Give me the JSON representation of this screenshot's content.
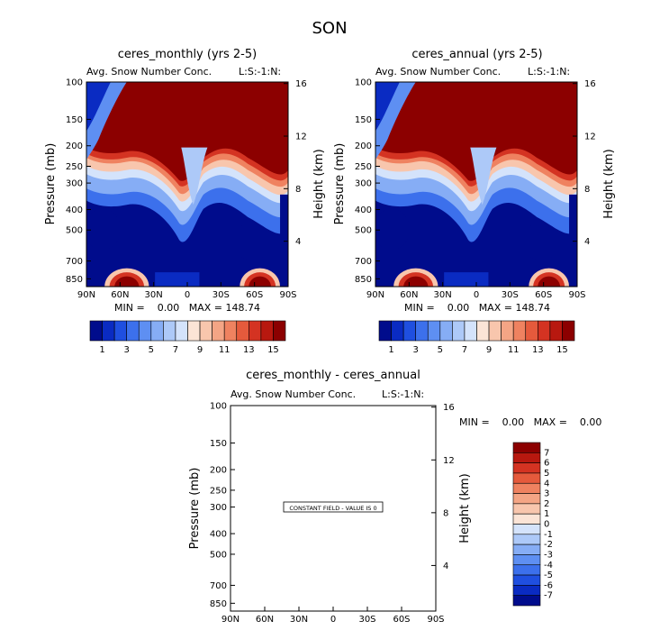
{
  "page_title": "SON",
  "chart_data": [
    {
      "type": "heatmap",
      "title": "ceres_monthly (yrs 2-5)",
      "subtitle": "Avg. Snow Number Conc.",
      "units_label": "L:S:-1:N:",
      "xlabel": "",
      "ylabel": "Pressure (mb)",
      "right_ylabel": "Height (km)",
      "x_ticks": [
        "90N",
        "60N",
        "30N",
        "0",
        "30S",
        "60S",
        "90S"
      ],
      "x_values": [
        90,
        60,
        30,
        0,
        -30,
        -60,
        -90
      ],
      "xlim": [
        90,
        -90
      ],
      "y_ticks": [
        "100",
        "150",
        "200",
        "250",
        "300",
        "400",
        "500",
        "700",
        "850"
      ],
      "y_values": [
        100,
        150,
        200,
        250,
        300,
        400,
        500,
        700,
        850
      ],
      "ylim": [
        100,
        925
      ],
      "right_ticks": [
        "16",
        "12",
        "8",
        "4"
      ],
      "right_values": [
        16,
        12,
        8,
        4
      ],
      "stats": "MIN =    0.00   MAX = 148.74",
      "colorbar": {
        "labels": [
          "1",
          "3",
          "5",
          "7",
          "9",
          "11",
          "13",
          "15"
        ],
        "levels": [
          1,
          3,
          5,
          7,
          9,
          11,
          13,
          15
        ],
        "colors": [
          "#000c8c",
          "#0a2bc2",
          "#1f4fe0",
          "#3c70ec",
          "#5e8ff2",
          "#86adf5",
          "#adc9f8",
          "#d4e3fb",
          "#fbe4d6",
          "#f8c6ad",
          "#f4a585",
          "#ef8260",
          "#e55a3c",
          "#d43322",
          "#b8180f",
          "#8c0000"
        ]
      }
    },
    {
      "type": "heatmap",
      "title": "ceres_annual (yrs 2-5)",
      "subtitle": "Avg. Snow Number Conc.",
      "units_label": "L:S:-1:N:",
      "xlabel": "",
      "ylabel": "Pressure (mb)",
      "right_ylabel": "Height (km)",
      "x_ticks": [
        "90N",
        "60N",
        "30N",
        "0",
        "30S",
        "60S",
        "90S"
      ],
      "x_values": [
        90,
        60,
        30,
        0,
        -30,
        -60,
        -90
      ],
      "xlim": [
        90,
        -90
      ],
      "y_ticks": [
        "100",
        "150",
        "200",
        "250",
        "300",
        "400",
        "500",
        "700",
        "850"
      ],
      "y_values": [
        100,
        150,
        200,
        250,
        300,
        400,
        500,
        700,
        850
      ],
      "ylim": [
        100,
        925
      ],
      "right_ticks": [
        "16",
        "12",
        "8",
        "4"
      ],
      "right_values": [
        16,
        12,
        8,
        4
      ],
      "stats": "MIN =    0.00   MAX = 148.74",
      "colorbar": {
        "labels": [
          "1",
          "3",
          "5",
          "7",
          "9",
          "11",
          "13",
          "15"
        ],
        "levels": [
          1,
          3,
          5,
          7,
          9,
          11,
          13,
          15
        ],
        "colors": [
          "#000c8c",
          "#0a2bc2",
          "#1f4fe0",
          "#3c70ec",
          "#5e8ff2",
          "#86adf5",
          "#adc9f8",
          "#d4e3fb",
          "#fbe4d6",
          "#f8c6ad",
          "#f4a585",
          "#ef8260",
          "#e55a3c",
          "#d43322",
          "#b8180f",
          "#8c0000"
        ]
      }
    },
    {
      "type": "heatmap",
      "title": "ceres_monthly - ceres_annual",
      "subtitle": "Avg. Snow Number Conc.",
      "units_label": "L:S:-1:N:",
      "xlabel": "",
      "ylabel": "Pressure (mb)",
      "right_ylabel": "Height (km)",
      "x_ticks": [
        "90N",
        "60N",
        "30N",
        "0",
        "30S",
        "60S",
        "90S"
      ],
      "x_values": [
        90,
        60,
        30,
        0,
        -30,
        -60,
        -90
      ],
      "xlim": [
        90,
        -90
      ],
      "y_ticks": [
        "100",
        "150",
        "200",
        "250",
        "300",
        "400",
        "500",
        "700",
        "850"
      ],
      "y_values": [
        100,
        150,
        200,
        250,
        300,
        400,
        500,
        700,
        850
      ],
      "ylim": [
        100,
        925
      ],
      "right_ticks": [
        "16",
        "12",
        "8",
        "4"
      ],
      "right_values": [
        16,
        12,
        8,
        4
      ],
      "stats": "MIN =    0.00   MAX =    0.00",
      "annotation": "CONSTANT FIELD - VALUE IS 0",
      "colorbar": {
        "labels": [
          "7",
          "6",
          "5",
          "4",
          "3",
          "2",
          "1",
          "0",
          "-1",
          "-2",
          "-3",
          "-4",
          "-5",
          "-6",
          "-7"
        ],
        "levels": [
          7,
          6,
          5,
          4,
          3,
          2,
          1,
          0,
          -1,
          -2,
          -3,
          -4,
          -5,
          -6,
          -7
        ],
        "colors": [
          "#8c0000",
          "#b8180f",
          "#d43322",
          "#e55a3c",
          "#ef8260",
          "#f4a585",
          "#f8c6ad",
          "#fbe4d6",
          "#d4e3fb",
          "#adc9f8",
          "#86adf5",
          "#5e8ff2",
          "#3c70ec",
          "#1f4fe0",
          "#0a2bc2",
          "#000c8c"
        ]
      }
    }
  ]
}
